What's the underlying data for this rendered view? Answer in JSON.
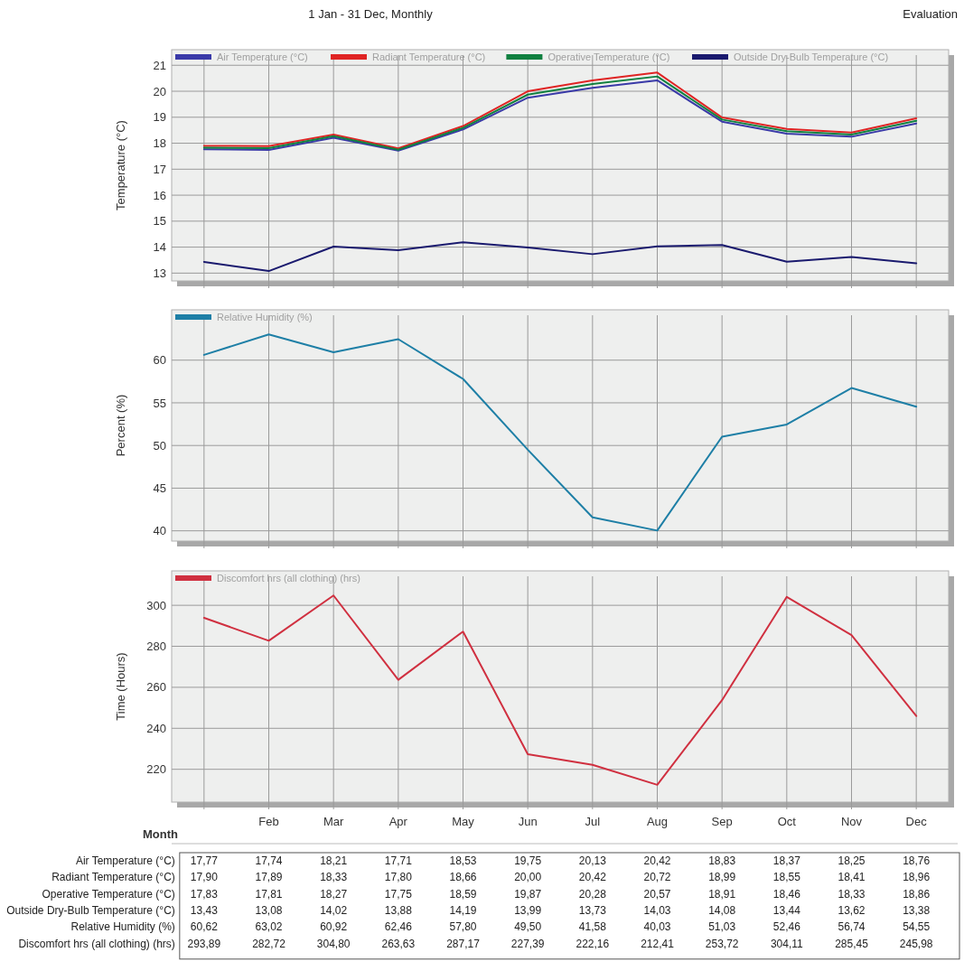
{
  "chart_data": [
    {
      "type": "line",
      "title": "1 Jan - 31 Dec, Monthly",
      "annotations": [
        "Evaluation"
      ],
      "ylabel": "Temperature (°C)",
      "tick_labels": "y",
      "ylim": [
        12.7,
        21.6
      ],
      "yticks": [
        13,
        14,
        15,
        16,
        17,
        18,
        19,
        20,
        21
      ],
      "grid": true,
      "legend": "top left",
      "series": [
        {
          "name": "Air Temperature (°C)",
          "color": "#3a3aa8",
          "values": [
            17.77,
            17.74,
            18.21,
            17.71,
            18.53,
            19.75,
            20.13,
            20.42,
            18.83,
            18.37,
            18.25,
            18.76
          ],
          "value_labels": [
            "17,77",
            "17,74",
            "18,21",
            "17,71",
            "18,53",
            "19,75",
            "20,13",
            "20,42",
            "18,83",
            "18,37",
            "18,25",
            "18,76"
          ]
        },
        {
          "name": "Radiant Temperature (°C)",
          "color": "#e02424",
          "values": [
            17.9,
            17.89,
            18.33,
            17.8,
            18.66,
            20.0,
            20.42,
            20.72,
            18.99,
            18.55,
            18.41,
            18.96
          ],
          "value_labels": [
            "17,90",
            "17,89",
            "18,33",
            "17,80",
            "18,66",
            "20,00",
            "20,42",
            "20,72",
            "18,99",
            "18,55",
            "18,41",
            "18,96"
          ]
        },
        {
          "name": "Operative Temperature (°C)",
          "color": "#108040",
          "values": [
            17.83,
            17.81,
            18.27,
            17.75,
            18.59,
            19.87,
            20.28,
            20.57,
            18.91,
            18.46,
            18.33,
            18.86
          ],
          "value_labels": [
            "17,83",
            "17,81",
            "18,27",
            "17,75",
            "18,59",
            "19,87",
            "20,28",
            "20,57",
            "18,91",
            "18,46",
            "18,33",
            "18,86"
          ]
        },
        {
          "name": "Outside Dry-Bulb Temperature (°C)",
          "color": "#1a1a6e",
          "values": [
            13.43,
            13.08,
            14.02,
            13.88,
            14.19,
            13.99,
            13.73,
            14.03,
            14.08,
            13.44,
            13.62,
            13.38
          ],
          "value_labels": [
            "13,43",
            "13,08",
            "14,02",
            "13,88",
            "14,19",
            "13,99",
            "13,73",
            "14,03",
            "14,08",
            "13,44",
            "13,62",
            "13,38"
          ]
        }
      ]
    },
    {
      "type": "line",
      "ylabel": "Percent (%)",
      "tick_labels": "y",
      "ylim": [
        38.8,
        65.9
      ],
      "yticks": [
        40,
        45,
        50,
        55,
        60
      ],
      "grid": true,
      "legend": "top left",
      "series": [
        {
          "name": "Relative Humidity (%)",
          "color": "#1e7fa6",
          "values": [
            60.62,
            63.02,
            60.92,
            62.46,
            57.8,
            49.5,
            41.58,
            40.03,
            51.03,
            52.46,
            56.74,
            54.55
          ],
          "value_labels": [
            "60,62",
            "63,02",
            "60,92",
            "62,46",
            "57,80",
            "49,50",
            "41,58",
            "40,03",
            "51,03",
            "52,46",
            "56,74",
            "54,55"
          ]
        }
      ]
    },
    {
      "type": "line",
      "ylabel": "Time (Hours)",
      "xlabel": "Month",
      "categories": [
        null,
        "Feb",
        "Mar",
        "Apr",
        "May",
        "Jun",
        "Jul",
        "Aug",
        "Sep",
        "Oct",
        "Nov",
        "Dec"
      ],
      "ylim": [
        204,
        316.8
      ],
      "yticks": [
        220,
        240,
        260,
        280,
        300
      ],
      "grid": true,
      "legend": "top left",
      "series": [
        {
          "name": "Discomfort hrs (all clothing) (hrs)",
          "color": "#d03040",
          "values": [
            293.89,
            282.72,
            304.8,
            263.63,
            287.17,
            227.39,
            222.16,
            212.41,
            253.72,
            304.11,
            285.45,
            245.98
          ],
          "value_labels": [
            "293,89",
            "282,72",
            "304,80",
            "263,63",
            "287,17",
            "227,39",
            "222,16",
            "212,41",
            "253,72",
            "304,11",
            "285,45",
            "245,98"
          ]
        }
      ]
    }
  ]
}
